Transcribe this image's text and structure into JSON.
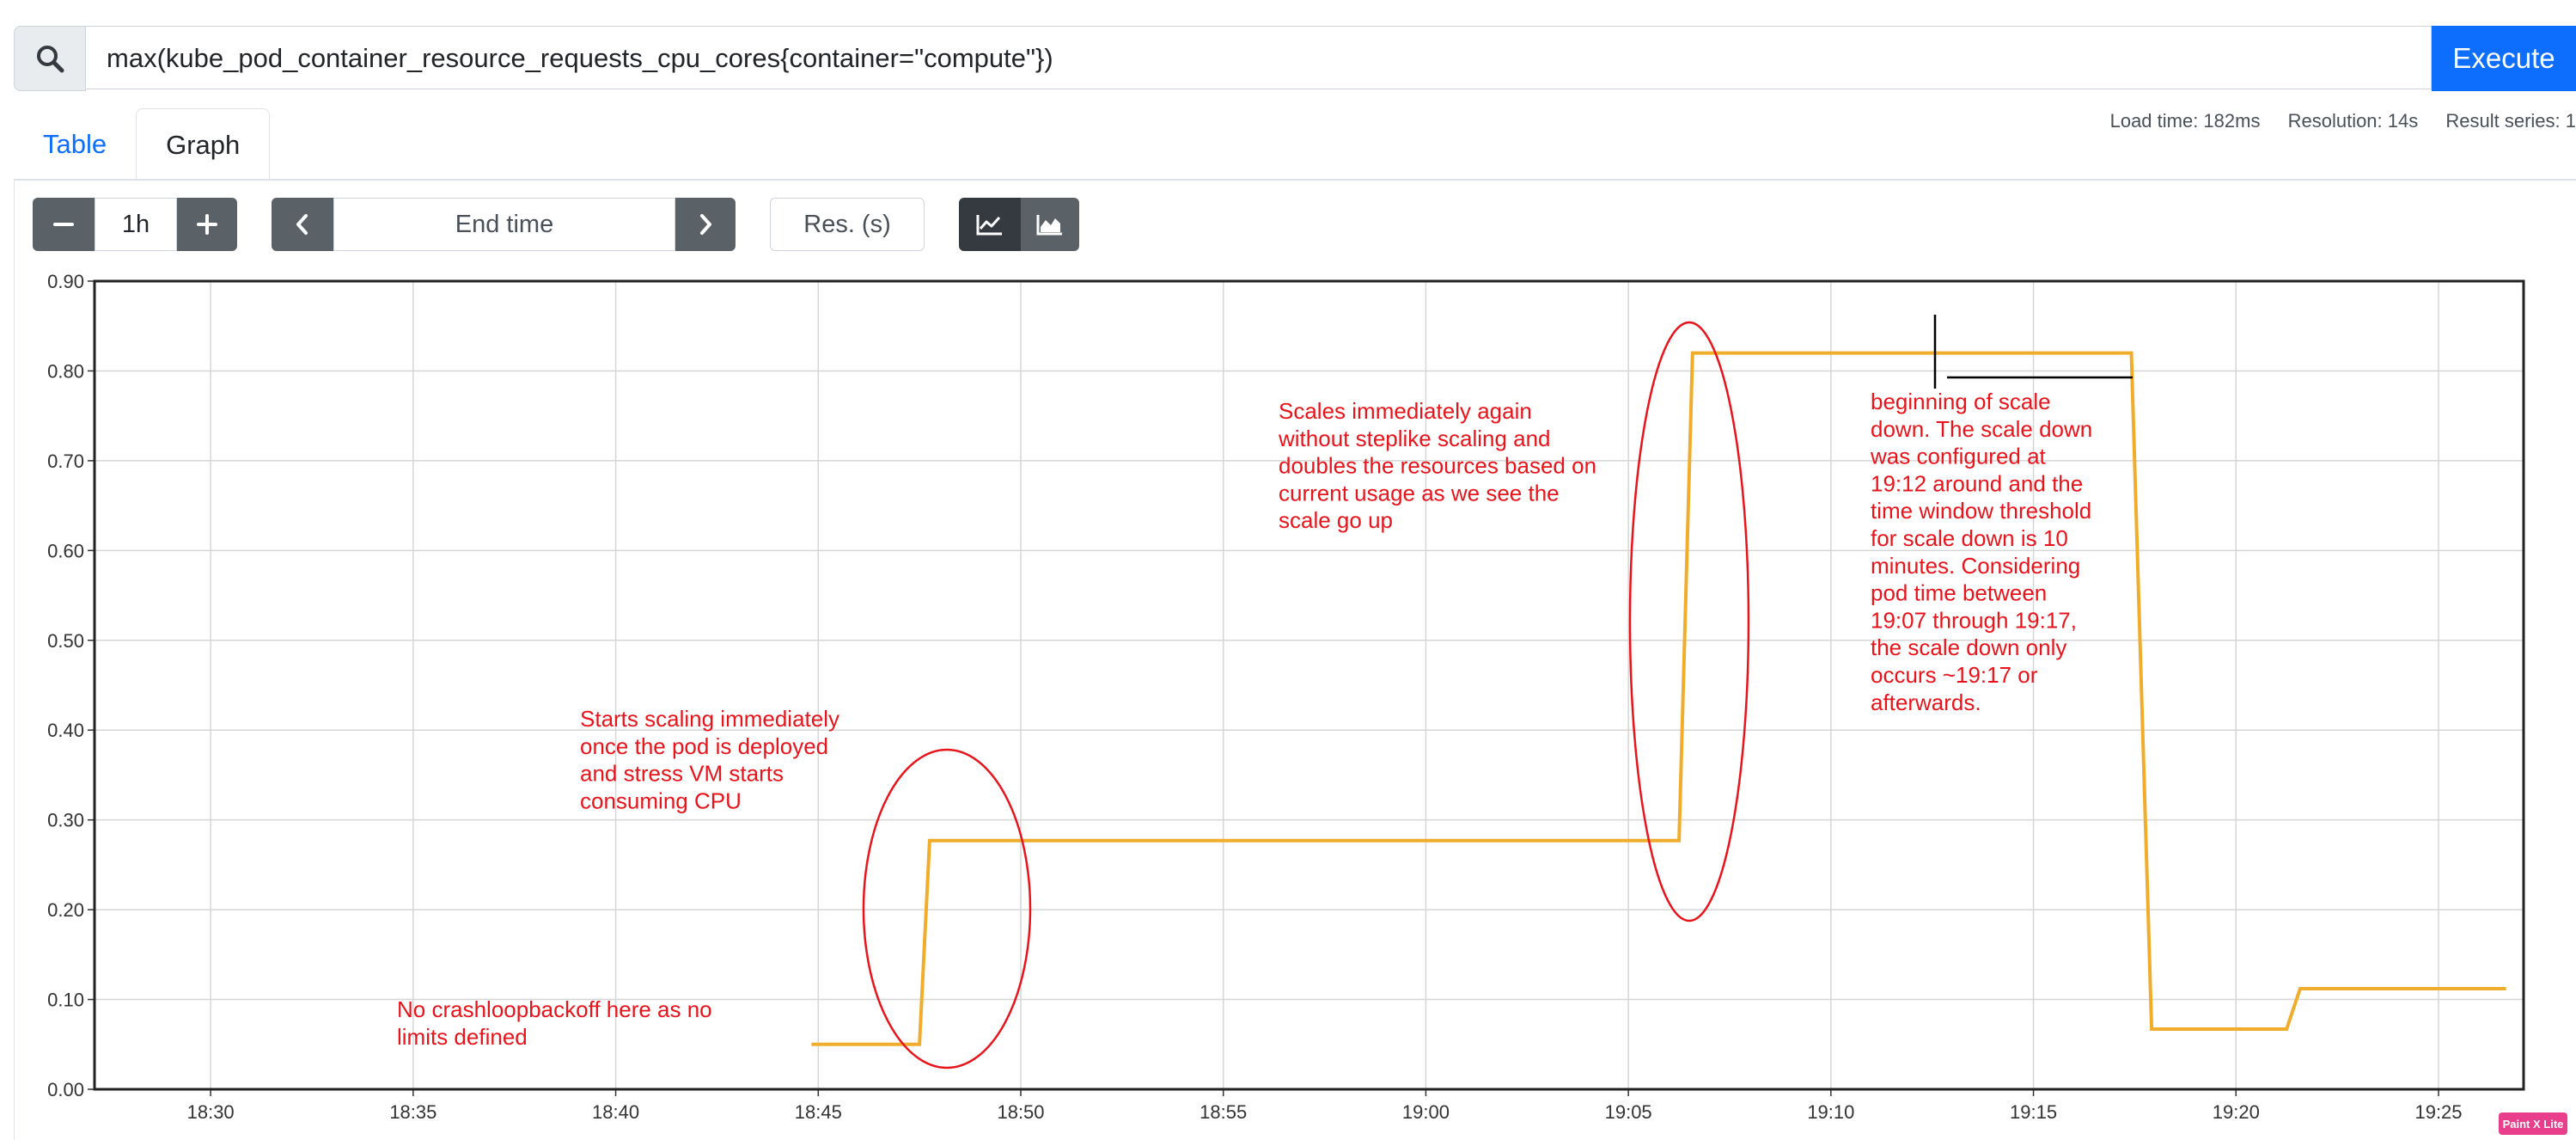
{
  "query": {
    "text": "max(kube_pod_container_resource_requests_cpu_cores{container=\"compute\"})",
    "execute_label": "Execute"
  },
  "tabs": [
    {
      "label": "Table",
      "active": false
    },
    {
      "label": "Graph",
      "active": true
    }
  ],
  "stats": {
    "load_time": "Load time: 182ms",
    "resolution": "Resolution: 14s",
    "result_series": "Result series: 1"
  },
  "controls": {
    "range_value": "1h",
    "end_time_placeholder": "End time",
    "res_placeholder": "Res. (s)",
    "minus_icon": "minus-icon",
    "plus_icon": "plus-icon",
    "prev_icon": "chevron-left-icon",
    "next_icon": "chevron-right-icon",
    "line_chart_icon": "line-chart-icon",
    "stacked_chart_icon": "stacked-chart-icon"
  },
  "chart_data": {
    "type": "line",
    "ylim": [
      0,
      0.9
    ],
    "yticks": [
      "0.00",
      "0.10",
      "0.20",
      "0.30",
      "0.40",
      "0.50",
      "0.60",
      "0.70",
      "0.80",
      "0.90"
    ],
    "xticks": [
      "18:30",
      "18:35",
      "18:40",
      "18:45",
      "18:50",
      "18:55",
      "19:00",
      "19:05",
      "19:10",
      "19:15",
      "19:20",
      "19:25"
    ],
    "grid": true,
    "line_color": "#f0ad2c",
    "series": [
      {
        "points": [
          [
            "18:44:50",
            0.05
          ],
          [
            "18:47:30",
            0.05
          ],
          [
            "18:47:45",
            0.277
          ],
          [
            "19:06:15",
            0.277
          ],
          [
            "19:06:35",
            0.82
          ],
          [
            "19:17:25",
            0.82
          ],
          [
            "19:17:55",
            0.067
          ],
          [
            "19:21:15",
            0.067
          ],
          [
            "19:21:35",
            0.112
          ],
          [
            "19:26:40",
            0.112
          ]
        ]
      }
    ],
    "annotations": [
      {
        "text": [
          "No crashloopbackoff here as no",
          "limits defined"
        ]
      },
      {
        "text": [
          "Starts scaling immediately",
          "once the pod is deployed",
          "and stress VM starts",
          "consuming CPU"
        ]
      },
      {
        "text": [
          "Scales immediately again",
          "without steplike scaling and",
          "doubles the resources based on",
          "current usage as we see the",
          "scale go up"
        ]
      },
      {
        "text": [
          "beginning of scale",
          "down. The scale down",
          "was configured at",
          "19:12 around and the",
          "time window threshold",
          "for scale down is 10",
          "minutes. Considering",
          "pod time between",
          "19:07 through 19:17,",
          "the scale down only",
          "occurs ~19:17 or",
          "afterwards."
        ]
      }
    ],
    "annotation_color": "#e8141b"
  },
  "badge": "Paint X Lite"
}
